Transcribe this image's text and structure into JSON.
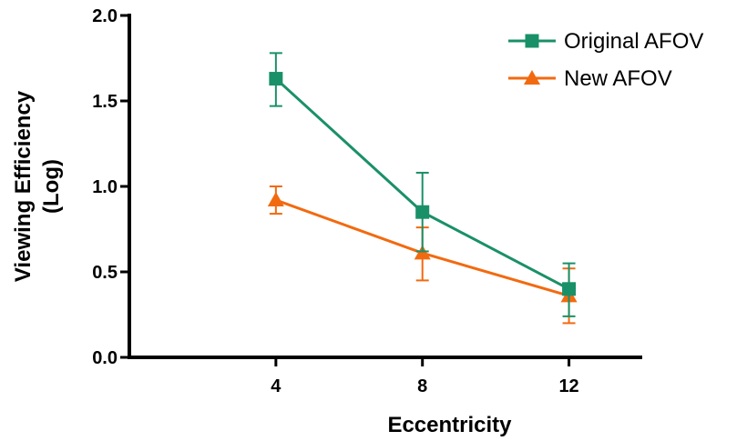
{
  "chart_data": {
    "type": "line",
    "title": "",
    "xlabel": "Eccentricity",
    "ylabel": [
      "Viewing Efficiency",
      "(Log)"
    ],
    "x": [
      4,
      8,
      12
    ],
    "xticks": [
      "4",
      "8",
      "12"
    ],
    "xlim": [
      0,
      14
    ],
    "ylim": [
      0,
      2
    ],
    "yticks": [
      "0.0",
      "0.5",
      "1.0",
      "1.5",
      "2.0"
    ],
    "grid": false,
    "legend_position": "top-right",
    "series": [
      {
        "name": "Original AFOV",
        "color": "#1a9068",
        "marker": "square",
        "values": [
          1.63,
          0.85,
          0.4
        ],
        "error_upper": [
          1.78,
          1.08,
          0.55
        ],
        "error_lower": [
          1.47,
          0.62,
          0.24
        ]
      },
      {
        "name": "New AFOV",
        "color": "#f26a10",
        "marker": "triangle",
        "values": [
          0.92,
          0.61,
          0.36
        ],
        "error_upper": [
          1.0,
          0.76,
          0.52
        ],
        "error_lower": [
          0.84,
          0.45,
          0.2
        ]
      }
    ]
  }
}
